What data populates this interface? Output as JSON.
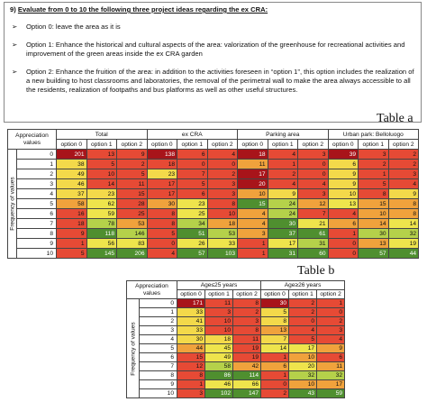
{
  "question": {
    "number": "9)",
    "text": "Evaluate from 0 to 10 the following three project ideas regarding the ex CRA:"
  },
  "options": [
    "Option 0: leave the area as it is",
    "Option 1: Enhance the historical and cultural aspects of the area: valorization of the greenhouse for recreational activities and improvement of the green areas inside the ex CRA garden",
    "Option 2: Enhance the fruition of the area: in addition to the activities foreseen in “option 1”, this option includes the realization of a new building to host classrooms and laboratories, the removal of the perimetral wall to make the area always accessible to all the residents, realization of footpaths and bus platforms as well as other useful structures."
  ],
  "table_a": {
    "label": "Table a",
    "corner": "Appreciation values",
    "side": "Frequency of values",
    "groups": [
      "Total",
      "ex CRA",
      "Parking area",
      "Urban park: Belloluogo"
    ],
    "options": [
      "option 0",
      "option 1",
      "option 2"
    ],
    "rows": [
      {
        "value": 0,
        "cells": [
          201,
          13,
          9,
          138,
          6,
          4,
          18,
          4,
          3,
          39,
          3,
          2
        ]
      },
      {
        "value": 1,
        "cells": [
          38,
          5,
          2,
          18,
          0,
          0,
          11,
          1,
          0,
          6,
          2,
          2
        ]
      },
      {
        "value": 2,
        "cells": [
          49,
          10,
          5,
          23,
          7,
          2,
          17,
          2,
          0,
          9,
          1,
          3
        ]
      },
      {
        "value": 3,
        "cells": [
          46,
          14,
          11,
          17,
          5,
          3,
          20,
          4,
          4,
          9,
          5,
          4
        ]
      },
      {
        "value": 4,
        "cells": [
          37,
          23,
          15,
          17,
          6,
          3,
          10,
          9,
          3,
          10,
          8,
          9
        ]
      },
      {
        "value": 5,
        "cells": [
          58,
          62,
          28,
          30,
          23,
          8,
          15,
          24,
          12,
          13,
          15,
          8
        ]
      },
      {
        "value": 6,
        "cells": [
          16,
          59,
          25,
          8,
          25,
          10,
          4,
          24,
          7,
          4,
          10,
          8
        ]
      },
      {
        "value": 7,
        "cells": [
          18,
          78,
          53,
          8,
          34,
          18,
          4,
          30,
          21,
          6,
          14,
          14
        ]
      },
      {
        "value": 8,
        "cells": [
          9,
          118,
          146,
          5,
          51,
          53,
          3,
          37,
          61,
          1,
          30,
          32
        ]
      },
      {
        "value": 9,
        "cells": [
          1,
          56,
          83,
          0,
          26,
          33,
          1,
          17,
          31,
          0,
          13,
          19
        ]
      },
      {
        "value": 10,
        "cells": [
          5,
          145,
          206,
          4,
          57,
          103,
          1,
          31,
          60,
          0,
          57,
          44
        ]
      }
    ]
  },
  "table_b": {
    "label": "Table b",
    "corner": "Appreciation values",
    "side": "Frequency of values",
    "groups": [
      "Age≤25 years",
      "Age≥26 years"
    ],
    "options": [
      "option 0",
      "option 1",
      "option 2"
    ],
    "rows": [
      {
        "value": 0,
        "cells": [
          171,
          11,
          8,
          30,
          2,
          1
        ]
      },
      {
        "value": 1,
        "cells": [
          33,
          3,
          2,
          5,
          2,
          0
        ]
      },
      {
        "value": 2,
        "cells": [
          41,
          10,
          3,
          8,
          0,
          2
        ]
      },
      {
        "value": 3,
        "cells": [
          33,
          10,
          8,
          13,
          4,
          3
        ]
      },
      {
        "value": 4,
        "cells": [
          30,
          18,
          11,
          7,
          5,
          4
        ]
      },
      {
        "value": 5,
        "cells": [
          44,
          45,
          19,
          14,
          17,
          9
        ]
      },
      {
        "value": 6,
        "cells": [
          15,
          49,
          19,
          1,
          10,
          6
        ]
      },
      {
        "value": 7,
        "cells": [
          12,
          58,
          42,
          6,
          20,
          11
        ]
      },
      {
        "value": 8,
        "cells": [
          8,
          86,
          114,
          1,
          32,
          32
        ]
      },
      {
        "value": 9,
        "cells": [
          1,
          46,
          66,
          0,
          10,
          17
        ]
      },
      {
        "value": 10,
        "cells": [
          3,
          102,
          147,
          2,
          43,
          59
        ]
      }
    ]
  }
}
